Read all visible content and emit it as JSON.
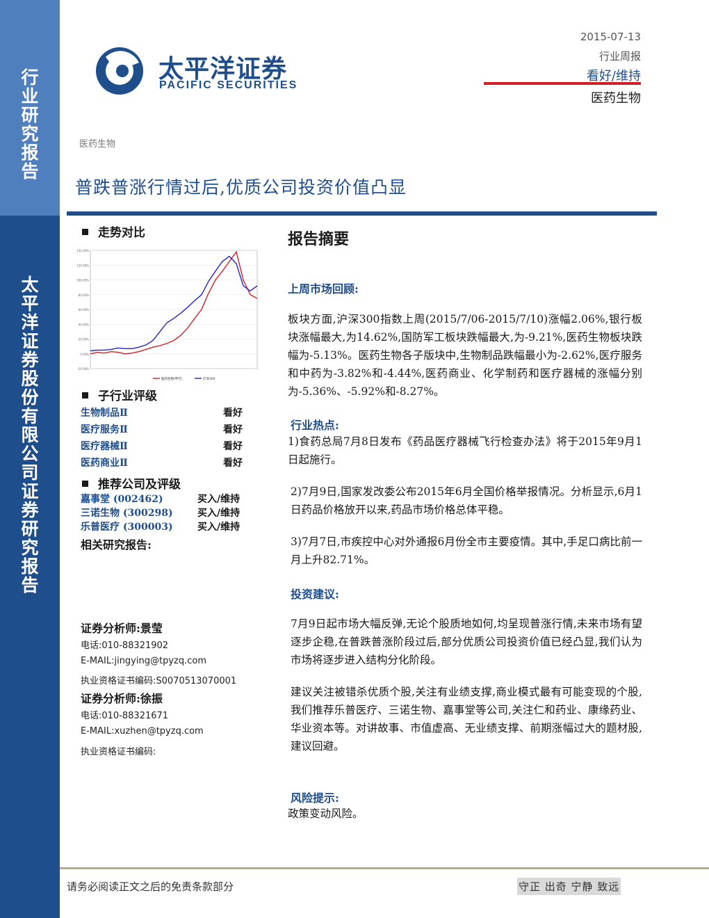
{
  "sidebar": {
    "label_top": [
      "行",
      "业",
      "研",
      "究",
      "报",
      "告"
    ],
    "label_company": [
      "太",
      "平",
      "洋",
      "证",
      "券",
      "股",
      "份",
      "有",
      "限",
      "公",
      "司",
      "证",
      "券",
      "研",
      "究",
      "报",
      "告"
    ]
  },
  "header": {
    "logo_cn": "太平洋证券",
    "logo_en": "PACIFIC SECURITIES",
    "date": "2015-07-13",
    "report_type": "行业周报",
    "rating": "看好/维持",
    "industry": "医药生物"
  },
  "category": "医药生物",
  "title": "普跌普涨行情过后,优质公司投资价值凸显",
  "trend": {
    "heading": "走势对比",
    "legend": [
      "医药生物(申万)",
      "沪深300"
    ]
  },
  "chart_data": {
    "type": "line",
    "title": "",
    "xlabel": "",
    "ylabel": "",
    "ylim": [
      -20,
      140
    ],
    "y_ticks": [
      -20,
      0,
      20,
      40,
      60,
      80,
      100,
      120,
      140
    ],
    "series": [
      {
        "name": "医药生物(申万)",
        "color": "#d32027",
        "values": [
          0,
          2,
          1,
          3,
          2,
          0,
          1,
          3,
          6,
          9,
          11,
          14,
          18,
          25,
          35,
          48,
          60,
          82,
          100,
          112,
          125,
          138,
          100,
          80,
          75
        ]
      },
      {
        "name": "沪深300",
        "color": "#2424c8",
        "values": [
          4,
          5,
          5,
          6,
          8,
          7,
          7,
          9,
          12,
          18,
          30,
          42,
          48,
          55,
          63,
          72,
          80,
          98,
          112,
          125,
          132,
          122,
          92,
          85,
          92
        ]
      }
    ]
  },
  "sub_ratings": {
    "heading": "子行业评级",
    "items": [
      {
        "name": "生物制品Ⅱ",
        "rating": "看好"
      },
      {
        "name": "医疗服务Ⅱ",
        "rating": "看好"
      },
      {
        "name": "医疗器械Ⅱ",
        "rating": "看好"
      },
      {
        "name": "医药商业Ⅱ",
        "rating": "看好"
      }
    ]
  },
  "companies": {
    "heading": "推荐公司及评级",
    "items": [
      {
        "name": "嘉事堂 (002462)",
        "rating": "买入/维持"
      },
      {
        "name": "三诺生物 (300298)",
        "rating": "买入/维持"
      },
      {
        "name": "乐普医疗 (300003)",
        "rating": "买入/维持"
      }
    ]
  },
  "related_heading": "相关研究报告:",
  "analysts": [
    {
      "title": "证券分析师:景莹",
      "phone": "电话:010-88321902",
      "email": "E-MAIL:jingying@tpyzq.com",
      "license": "执业资格证书编码:S0070513070001"
    },
    {
      "title": "证券分析师:徐振",
      "phone": "电话:010-88321671",
      "email": "E-MAIL:xuzhen@tpyzq.com",
      "license": "执业资格证书编码:"
    }
  ],
  "abstract": {
    "heading": "报告摘要",
    "review_heading": "上周市场回顾:",
    "review_text": "板块方面,沪深300指数上周(2015/7/06-2015/7/10)涨幅2.06%,银行板块涨幅最大,为14.62%,国防军工板块跌幅最大,为-9.21%,医药生物板块跌幅为-5.13%。医药生物各子版块中,生物制品跌幅最小为-2.62%,医疗服务和中药为-3.82%和-4.44%,医药商业、化学制药和医疗器械的涨幅分别为-5.36%、-5.92%和-8.27%。",
    "hot_heading": "行业热点:",
    "hot_1": "1)食药总局7月8日发布《药品医疗器械飞行检查办法》将于2015年9月1日起施行。",
    "hot_2": "2)7月9日,国家发改委公布2015年6月全国价格举报情况。分析显示,6月1日药品价格放开以来,药品市场价格总体平稳。",
    "hot_3": "3)7月7日,市疾控中心对外通报6月份全市主要疫情。其中,手足口病比前一月上升82.71%。",
    "advice_heading": "投资建议:",
    "advice_1": "7月9日起市场大幅反弹,无论个股质地如何,均呈现普涨行情,未来市场有望逐步企稳,在普跌普涨阶段过后,部分优质公司投资价值已经凸显,我们认为市场将逐步进入结构分化阶段。",
    "advice_2": "建议关注被错杀优质个股,关注有业绩支撑,商业模式最有可能变现的个股,我们推荐乐普医疗、三诺生物、嘉事堂等公司,关注仁和药业、康缘药业、华业资本等。对讲故事、市值虚高、无业绩支撑、前期涨幅过大的题材股,建议回避。",
    "risk_heading": "风险提示:",
    "risk_text": "政策变动风险。"
  },
  "footer": {
    "disclaimer": "请务必阅读正文之后的免责条款部分",
    "motto": "守正 出奇 宁静 致远"
  }
}
